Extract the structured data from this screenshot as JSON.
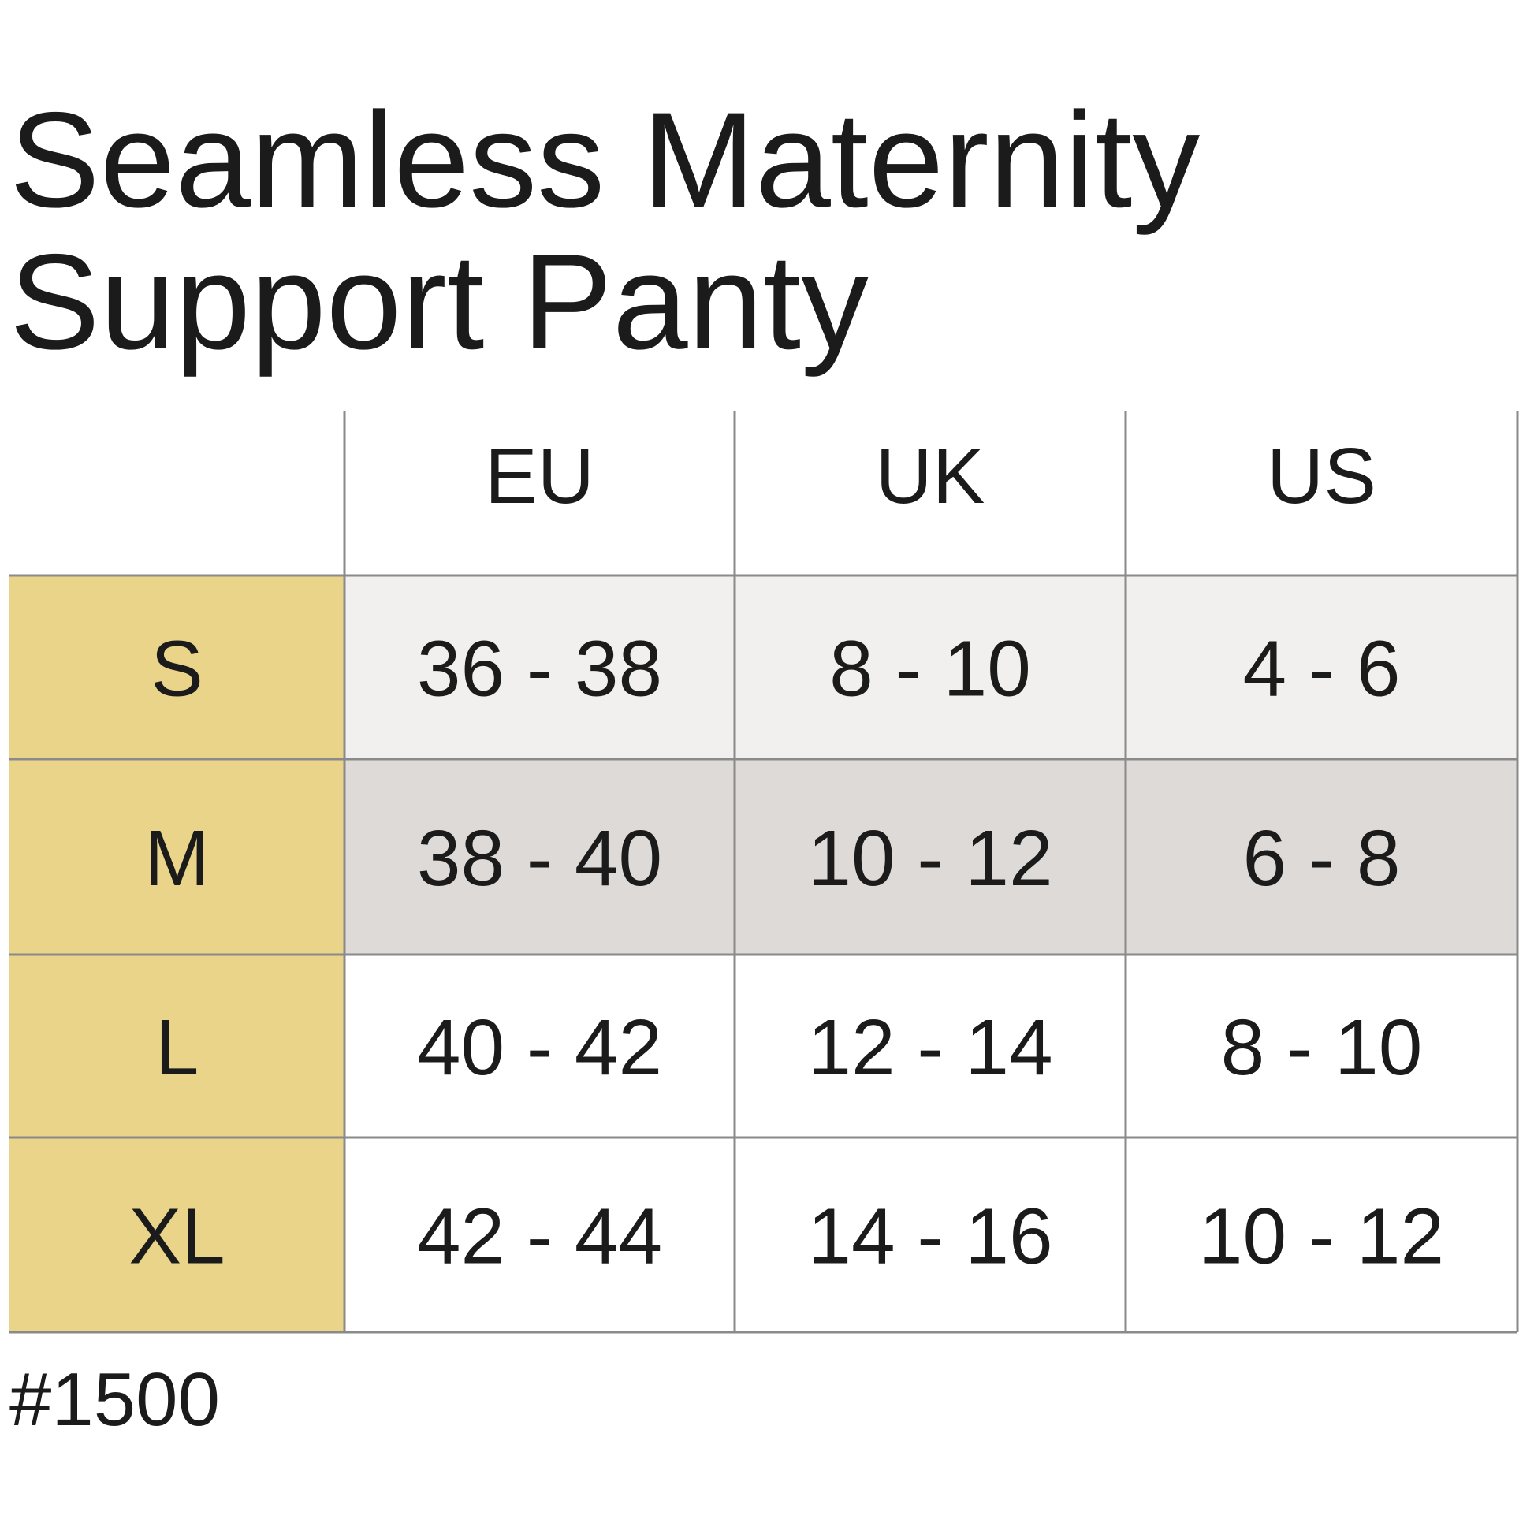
{
  "title_lines": [
    "Seamless Maternity",
    "Support Panty"
  ],
  "table": {
    "headers": [
      "EU",
      "UK",
      "US"
    ],
    "rows": [
      [
        "S",
        "36 - 38",
        "8 - 10",
        "4 - 6"
      ],
      [
        "M",
        "38 - 40",
        "10 - 12",
        "6 - 8"
      ],
      [
        "L",
        "40 - 42",
        "12 - 14",
        "8 - 10"
      ],
      [
        "XL",
        "42 - 44",
        "14 - 16",
        "10 - 12"
      ]
    ]
  },
  "footer": "#1500"
}
